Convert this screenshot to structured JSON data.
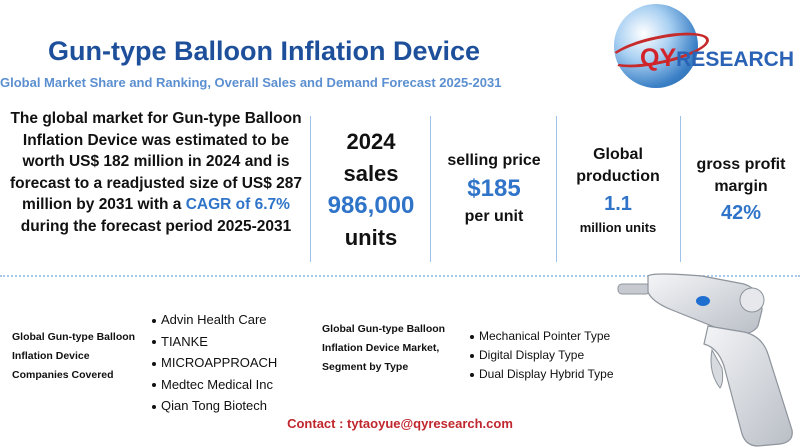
{
  "header": {
    "title": "Gun-type Balloon Inflation Device",
    "subtitle": "Global Market Share and Ranking, Overall Sales and Demand Forecast 2025-2031"
  },
  "logo": {
    "q": "Q",
    "y": "Y",
    "research": "RESEARCH",
    "icon": "globe-icon"
  },
  "intro": {
    "text_before": "The global market for Gun-type Balloon Inflation Device was estimated to be worth US$ 182 million in 2024 and is forecast to a readjusted size of US$ 287 million by 2031 with a ",
    "highlight": "CAGR of 6.7%",
    "text_after": " during the forecast period 2025-2031"
  },
  "stats": {
    "sales": {
      "line1": "2024",
      "line2": "sales",
      "value": "986,000",
      "unit": "units"
    },
    "price": {
      "label": "selling price",
      "value": "$185",
      "unit": "per unit"
    },
    "production": {
      "label1": "Global",
      "label2": "production",
      "value": "1.1",
      "unit": "million units"
    },
    "margin": {
      "label1": "gross profit",
      "label2": "margin",
      "value": "42%"
    }
  },
  "companies": {
    "label": "Global Gun-type Balloon Inflation Device Companies Covered",
    "items": [
      "Advin Health Care",
      "TIANKE",
      "MICROAPPROACH",
      "Medtec Medical Inc",
      "Qian Tong Biotech"
    ]
  },
  "segments": {
    "label": "Global Gun-type Balloon Inflation Device Market, Segment by Type",
    "items": [
      "Mechanical Pointer Type",
      "Digital Display Type",
      "Dual Display Hybrid Type"
    ]
  },
  "contact": "Contact : tytaoyue@qyresearch.com",
  "colors": {
    "title": "#1d4f9a",
    "accent": "#2f74c8",
    "contact": "#c0272d",
    "logo_red": "#d2232a"
  }
}
